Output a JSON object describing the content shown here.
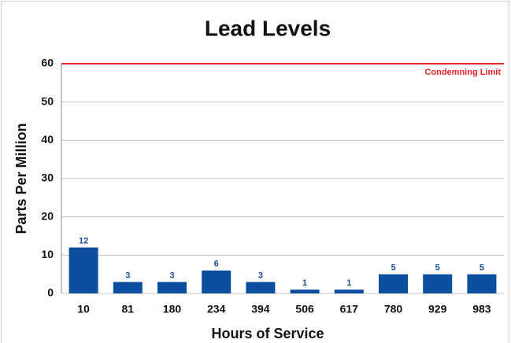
{
  "chart_data": {
    "type": "bar",
    "title": "Lead Levels",
    "x_label": "Hours of Service",
    "y_label": "Parts Per Million",
    "categories": [
      "10",
      "81",
      "180",
      "234",
      "394",
      "506",
      "617",
      "780",
      "929",
      "983"
    ],
    "values": [
      12,
      3,
      3,
      6,
      3,
      1,
      1,
      5,
      5,
      5
    ],
    "color": "#0b4f9e",
    "ylim": [
      0,
      60
    ],
    "yticks": [
      0,
      10,
      20,
      30,
      40,
      50,
      60
    ],
    "grid": true,
    "limit": {
      "value": 60,
      "label": "Condemning Limit",
      "color": "#e8262b"
    }
  }
}
